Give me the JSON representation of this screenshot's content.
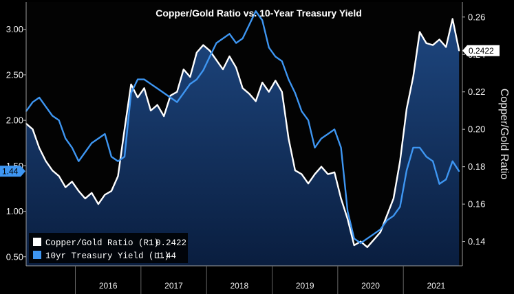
{
  "chart_data": {
    "type": "line",
    "title": "Copper/Gold Ratio vs. 10-Year Treasury Yield",
    "ylabel_right": "Copper/Gold Ratio",
    "x_tick_labels": [
      "2016",
      "2017",
      "2018",
      "2019",
      "2020",
      "2021"
    ],
    "x_range": [
      2015.25,
      2021.9
    ],
    "y_left": {
      "ticks": [
        "0.50",
        "1.00",
        "1.50",
        "2.00",
        "2.50",
        "3.00"
      ],
      "range": [
        0.4,
        3.3
      ]
    },
    "y_right": {
      "ticks": [
        "0.14",
        "0.16",
        "0.18",
        "0.20",
        "0.22",
        "0.24",
        "0.26"
      ],
      "range": [
        0.127,
        0.268
      ]
    },
    "grid": false,
    "legend_position": "bottom-left",
    "series": [
      {
        "name": "Copper/Gold Ratio (R1)",
        "axis": "right",
        "color": "#ffffff",
        "last_value_label": "0.2422",
        "x": [
          2015.25,
          2015.35,
          2015.45,
          2015.55,
          2015.65,
          2015.75,
          2015.85,
          2015.95,
          2016.05,
          2016.15,
          2016.25,
          2016.35,
          2016.45,
          2016.55,
          2016.65,
          2016.75,
          2016.85,
          2016.95,
          2017.05,
          2017.15,
          2017.25,
          2017.35,
          2017.45,
          2017.55,
          2017.65,
          2017.75,
          2017.85,
          2017.95,
          2018.05,
          2018.15,
          2018.25,
          2018.35,
          2018.45,
          2018.55,
          2018.65,
          2018.75,
          2018.85,
          2018.95,
          2019.05,
          2019.15,
          2019.25,
          2019.35,
          2019.45,
          2019.55,
          2019.65,
          2019.75,
          2019.85,
          2019.95,
          2020.05,
          2020.15,
          2020.25,
          2020.35,
          2020.45,
          2020.55,
          2020.65,
          2020.75,
          2020.85,
          2020.95,
          2021.05,
          2021.15,
          2021.25,
          2021.35,
          2021.45,
          2021.55,
          2021.65,
          2021.75,
          2021.85
        ],
        "values": [
          0.203,
          0.2,
          0.19,
          0.183,
          0.178,
          0.175,
          0.169,
          0.172,
          0.167,
          0.163,
          0.166,
          0.16,
          0.165,
          0.167,
          0.175,
          0.2,
          0.224,
          0.217,
          0.222,
          0.21,
          0.213,
          0.207,
          0.218,
          0.22,
          0.232,
          0.228,
          0.241,
          0.245,
          0.242,
          0.237,
          0.232,
          0.239,
          0.233,
          0.222,
          0.219,
          0.215,
          0.225,
          0.22,
          0.226,
          0.22,
          0.195,
          0.178,
          0.176,
          0.171,
          0.176,
          0.18,
          0.176,
          0.177,
          0.163,
          0.152,
          0.138,
          0.14,
          0.137,
          0.141,
          0.145,
          0.154,
          0.163,
          0.183,
          0.211,
          0.228,
          0.252,
          0.246,
          0.245,
          0.248,
          0.244,
          0.259,
          0.242
        ]
      },
      {
        "name": "10yr Treasury Yield (L1)",
        "axis": "left",
        "color": "#3e96f2",
        "last_value_label": "1.44",
        "x": [
          2015.25,
          2015.35,
          2015.45,
          2015.55,
          2015.65,
          2015.75,
          2015.85,
          2015.95,
          2016.05,
          2016.15,
          2016.25,
          2016.35,
          2016.45,
          2016.55,
          2016.65,
          2016.75,
          2016.85,
          2016.95,
          2017.05,
          2017.15,
          2017.25,
          2017.35,
          2017.45,
          2017.55,
          2017.65,
          2017.75,
          2017.85,
          2017.95,
          2018.05,
          2018.15,
          2018.25,
          2018.35,
          2018.45,
          2018.55,
          2018.65,
          2018.75,
          2018.85,
          2018.95,
          2019.05,
          2019.15,
          2019.25,
          2019.35,
          2019.45,
          2019.55,
          2019.65,
          2019.75,
          2019.85,
          2019.95,
          2020.05,
          2020.15,
          2020.25,
          2020.35,
          2020.45,
          2020.55,
          2020.65,
          2020.75,
          2020.85,
          2020.95,
          2021.05,
          2021.15,
          2021.25,
          2021.35,
          2021.45,
          2021.55,
          2021.65,
          2021.75,
          2021.85
        ],
        "values": [
          2.1,
          2.2,
          2.25,
          2.15,
          2.05,
          2.0,
          1.8,
          1.7,
          1.55,
          1.65,
          1.75,
          1.8,
          1.85,
          1.6,
          1.55,
          1.6,
          2.3,
          2.45,
          2.45,
          2.4,
          2.35,
          2.3,
          2.25,
          2.2,
          2.3,
          2.4,
          2.45,
          2.55,
          2.7,
          2.85,
          2.9,
          2.95,
          2.85,
          2.9,
          3.05,
          3.2,
          3.1,
          2.8,
          2.7,
          2.65,
          2.45,
          2.3,
          2.1,
          2.0,
          1.7,
          1.8,
          1.85,
          1.9,
          1.7,
          1.0,
          0.7,
          0.65,
          0.7,
          0.75,
          0.8,
          0.9,
          0.95,
          1.05,
          1.45,
          1.7,
          1.7,
          1.6,
          1.55,
          1.3,
          1.35,
          1.55,
          1.44
        ]
      }
    ]
  }
}
